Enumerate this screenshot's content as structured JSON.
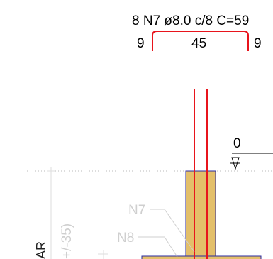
{
  "rebar": {
    "spec": "8 N7 ø8.0 c/8 C=59",
    "hook_left": "9",
    "span": "45",
    "hook_right": "9"
  },
  "level_marker": {
    "value": "0"
  },
  "labels": {
    "n7": "N7",
    "n8": "N8",
    "rotated_dim": "+/-35)",
    "rotated_ar": "AR"
  },
  "colors": {
    "rebar": "#e8141c",
    "concrete_fill": "#e3bf6a",
    "concrete_outline": "#2a2aa0",
    "ghost": "#cfcfcf"
  }
}
